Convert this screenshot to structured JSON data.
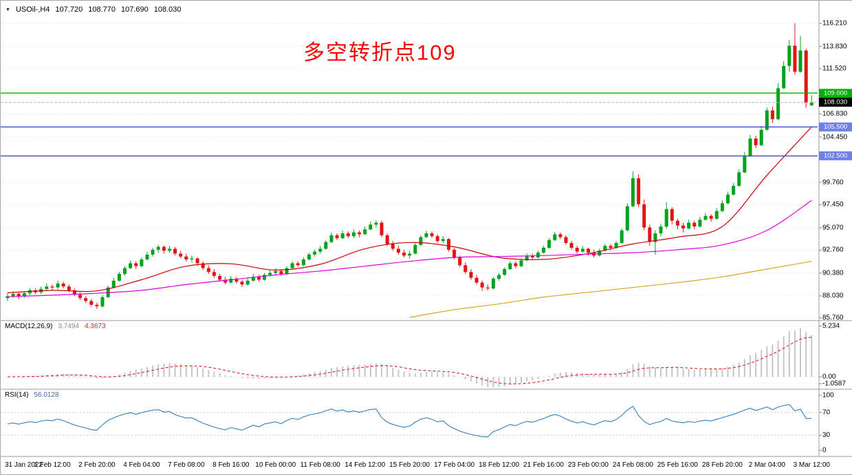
{
  "header": {
    "dropdown_icon": "▼",
    "title": "USOil-,H4",
    "open": "107.720",
    "high": "108.770",
    "low": "107.690",
    "close": "108.030"
  },
  "annotation": {
    "text": "多空转折点109"
  },
  "colors": {
    "up": "#00A31C",
    "down": "#E51414",
    "ma_fast": "#CC0000",
    "ma_mid": "#DD00DD",
    "ma_slow": "#DAA520",
    "hline_green": "#00B000",
    "hline_blue": "#3B4CC8",
    "hline_blue_label_bg": "#6E7FE6",
    "price_label_bg": "#000000",
    "macd_hist": "#C6C6C6",
    "macd_signal": "#D01010",
    "rsi": "#2E7FC1",
    "grid": "#D8D8D8",
    "border": "#9A9A9A",
    "annotation": "#FF0000"
  },
  "chart_data": {
    "type": "candlestick",
    "title": "USOil-,H4",
    "symbol": "USOil-",
    "timeframe": "H4",
    "candles_per_label": 8,
    "x_labels": [
      "31 Jan 2022",
      "1 Feb 12:00",
      "2 Feb 20:00",
      "4 Feb 04:00",
      "7 Feb 08:00",
      "8 Feb 16:00",
      "10 Feb 00:00",
      "11 Feb 08:00",
      "14 Feb 12:00",
      "15 Feb 20:00",
      "17 Feb 04:00",
      "18 Feb 12:00",
      "21 Feb 16:00",
      "23 Feb 00:00",
      "24 Feb 08:00",
      "25 Feb 16:00",
      "28 Feb 20:00",
      "2 Mar 04:00",
      "3 Mar 12:00"
    ],
    "y_ticks": [
      {
        "label": "116.210",
        "value": 116.21
      },
      {
        "label": "113.830",
        "value": 113.83
      },
      {
        "label": "111.520",
        "value": 111.52
      },
      {
        "label": "106.830",
        "value": 106.83
      },
      {
        "label": "104.450",
        "value": 104.45
      },
      {
        "label": "99.760",
        "value": 99.76
      },
      {
        "label": "97.450",
        "value": 97.45
      },
      {
        "label": "95.070",
        "value": 95.07
      },
      {
        "label": "92.760",
        "value": 92.76
      },
      {
        "label": "90.380",
        "value": 90.38
      },
      {
        "label": "88.030",
        "value": 88.03
      },
      {
        "label": "85.760",
        "value": 85.76
      }
    ],
    "hlines": [
      {
        "value": 109.0,
        "label": "109.000",
        "color_key": "green"
      },
      {
        "value": 105.5,
        "label": "105.500",
        "color_key": "blue"
      },
      {
        "value": 102.5,
        "label": "102.500",
        "color_key": "blue"
      }
    ],
    "bid": {
      "value": 108.03,
      "label": "108.030"
    },
    "candles": [
      [
        87.8,
        88.3,
        87.5,
        88.0
      ],
      [
        88.0,
        88.5,
        87.8,
        88.25
      ],
      [
        88.25,
        88.4,
        87.7,
        87.95
      ],
      [
        87.95,
        88.5,
        87.8,
        88.3
      ],
      [
        88.3,
        88.8,
        88.1,
        88.6
      ],
      [
        88.6,
        88.8,
        88.2,
        88.4
      ],
      [
        88.4,
        89.0,
        88.2,
        88.75
      ],
      [
        88.75,
        89.3,
        88.6,
        89.0
      ],
      [
        89.0,
        89.2,
        88.6,
        88.9
      ],
      [
        88.9,
        89.6,
        88.7,
        89.3
      ],
      [
        89.3,
        89.5,
        88.8,
        89.0
      ],
      [
        89.0,
        89.2,
        88.4,
        88.6
      ],
      [
        88.6,
        88.8,
        88.0,
        88.15
      ],
      [
        88.15,
        88.4,
        87.6,
        87.8
      ],
      [
        87.8,
        88.0,
        87.3,
        87.5
      ],
      [
        87.5,
        87.7,
        86.9,
        87.1
      ],
      [
        87.1,
        87.3,
        86.68,
        86.95
      ],
      [
        86.95,
        88.1,
        86.8,
        87.9
      ],
      [
        87.9,
        89.1,
        87.8,
        88.9
      ],
      [
        88.9,
        89.9,
        88.8,
        89.6
      ],
      [
        89.6,
        90.5,
        89.5,
        90.3
      ],
      [
        90.3,
        91.1,
        90.1,
        90.9
      ],
      [
        90.9,
        91.7,
        90.8,
        91.4
      ],
      [
        91.4,
        91.6,
        90.8,
        91.1
      ],
      [
        91.1,
        92.0,
        91.0,
        91.8
      ],
      [
        91.8,
        92.6,
        91.7,
        92.3
      ],
      [
        92.3,
        93.0,
        92.1,
        92.8
      ],
      [
        92.8,
        93.3,
        92.5,
        93.1
      ],
      [
        93.1,
        93.25,
        92.4,
        92.7
      ],
      [
        92.7,
        93.2,
        92.5,
        92.9
      ],
      [
        92.9,
        93.1,
        92.2,
        92.4
      ],
      [
        92.4,
        92.7,
        91.9,
        92.1
      ],
      [
        92.1,
        92.4,
        91.6,
        91.8
      ],
      [
        91.8,
        92.2,
        91.5,
        91.9
      ],
      [
        91.9,
        92.0,
        91.1,
        91.4
      ],
      [
        91.4,
        91.6,
        90.7,
        90.9
      ],
      [
        90.9,
        91.2,
        90.3,
        90.5
      ],
      [
        90.5,
        90.8,
        89.9,
        90.1
      ],
      [
        90.1,
        90.3,
        89.5,
        89.7
      ],
      [
        89.7,
        90.0,
        89.2,
        89.4
      ],
      [
        89.4,
        90.1,
        89.3,
        89.8
      ],
      [
        89.8,
        90.0,
        89.3,
        89.5
      ],
      [
        89.5,
        89.7,
        88.95,
        89.2
      ],
      [
        89.2,
        89.9,
        89.1,
        89.6
      ],
      [
        89.6,
        90.3,
        89.5,
        90.0
      ],
      [
        90.0,
        90.2,
        89.5,
        89.7
      ],
      [
        89.7,
        90.4,
        89.6,
        90.2
      ],
      [
        90.2,
        90.7,
        90.0,
        90.4
      ],
      [
        90.4,
        90.9,
        90.2,
        90.6
      ],
      [
        90.6,
        90.8,
        90.1,
        90.3
      ],
      [
        90.3,
        91.1,
        90.2,
        90.9
      ],
      [
        90.9,
        91.6,
        90.8,
        91.4
      ],
      [
        91.4,
        91.6,
        91.0,
        91.2
      ],
      [
        91.2,
        92.0,
        91.1,
        91.8
      ],
      [
        91.8,
        92.5,
        91.7,
        92.3
      ],
      [
        92.3,
        92.8,
        92.1,
        92.6
      ],
      [
        92.6,
        93.2,
        92.4,
        92.9
      ],
      [
        92.9,
        93.8,
        92.8,
        93.6
      ],
      [
        93.6,
        94.6,
        93.5,
        94.3
      ],
      [
        94.3,
        94.5,
        93.8,
        94.0
      ],
      [
        94.0,
        94.8,
        93.9,
        94.5
      ],
      [
        94.5,
        94.7,
        94.0,
        94.2
      ],
      [
        94.2,
        94.9,
        94.0,
        94.6
      ],
      [
        94.6,
        94.8,
        94.1,
        94.4
      ],
      [
        94.4,
        95.2,
        94.3,
        94.9
      ],
      [
        94.9,
        95.7,
        94.8,
        95.4
      ],
      [
        95.4,
        95.85,
        95.1,
        95.6
      ],
      [
        95.6,
        95.8,
        94.1,
        94.3
      ],
      [
        94.3,
        94.5,
        93.2,
        93.4
      ],
      [
        93.4,
        93.7,
        92.7,
        92.9
      ],
      [
        92.9,
        93.2,
        92.3,
        92.5
      ],
      [
        92.5,
        92.8,
        92.0,
        92.2
      ],
      [
        92.2,
        92.7,
        91.9,
        92.4
      ],
      [
        92.4,
        93.5,
        92.3,
        93.3
      ],
      [
        93.3,
        94.3,
        93.2,
        94.1
      ],
      [
        94.1,
        94.75,
        94.0,
        94.5
      ],
      [
        94.5,
        94.7,
        94.0,
        94.2
      ],
      [
        94.2,
        94.4,
        93.5,
        93.7
      ],
      [
        93.7,
        94.2,
        93.5,
        93.9
      ],
      [
        93.9,
        94.0,
        92.6,
        92.8
      ],
      [
        92.8,
        93.0,
        91.8,
        92.0
      ],
      [
        92.0,
        92.2,
        91.0,
        91.2
      ],
      [
        91.2,
        91.5,
        90.3,
        90.5
      ],
      [
        90.5,
        90.8,
        89.7,
        89.9
      ],
      [
        89.9,
        90.2,
        89.2,
        89.4
      ],
      [
        89.4,
        89.6,
        88.55,
        88.9
      ],
      [
        88.9,
        89.2,
        88.6,
        88.8
      ],
      [
        88.8,
        90.0,
        88.7,
        89.8
      ],
      [
        89.8,
        90.4,
        89.6,
        90.2
      ],
      [
        90.2,
        91.0,
        90.1,
        90.8
      ],
      [
        90.8,
        91.6,
        90.7,
        91.4
      ],
      [
        91.4,
        91.6,
        90.9,
        91.1
      ],
      [
        91.1,
        91.9,
        91.0,
        91.7
      ],
      [
        91.7,
        92.4,
        91.6,
        92.2
      ],
      [
        92.2,
        92.4,
        91.8,
        92.0
      ],
      [
        92.0,
        92.7,
        91.9,
        92.5
      ],
      [
        92.5,
        93.2,
        92.4,
        93.0
      ],
      [
        93.0,
        94.0,
        92.9,
        93.8
      ],
      [
        93.8,
        94.65,
        93.7,
        94.4
      ],
      [
        94.4,
        94.6,
        93.9,
        94.1
      ],
      [
        94.1,
        94.3,
        93.3,
        93.5
      ],
      [
        93.5,
        93.7,
        92.8,
        93.0
      ],
      [
        93.0,
        93.2,
        92.4,
        92.6
      ],
      [
        92.6,
        93.2,
        92.5,
        92.9
      ],
      [
        92.9,
        93.0,
        92.2,
        92.5
      ],
      [
        92.5,
        92.8,
        92.0,
        92.2
      ],
      [
        92.2,
        92.9,
        92.1,
        92.7
      ],
      [
        92.7,
        93.4,
        92.6,
        93.2
      ],
      [
        93.2,
        93.4,
        92.7,
        93.0
      ],
      [
        93.0,
        93.7,
        92.9,
        93.5
      ],
      [
        93.5,
        95.0,
        93.4,
        94.8
      ],
      [
        94.8,
        97.6,
        94.7,
        97.3
      ],
      [
        97.3,
        100.9,
        97.2,
        100.2
      ],
      [
        100.2,
        100.6,
        97.2,
        97.5
      ],
      [
        97.5,
        98.0,
        94.8,
        95.1
      ],
      [
        95.1,
        95.4,
        93.2,
        93.6
      ],
      [
        93.6,
        94.8,
        92.3,
        94.5
      ],
      [
        94.5,
        95.5,
        94.2,
        95.2
      ],
      [
        95.2,
        97.7,
        95.0,
        97.0
      ],
      [
        97.0,
        97.2,
        95.4,
        95.8
      ],
      [
        95.8,
        96.0,
        94.9,
        95.3
      ],
      [
        95.3,
        95.6,
        94.6,
        95.0
      ],
      [
        95.0,
        95.9,
        94.9,
        95.6
      ],
      [
        95.6,
        95.8,
        94.9,
        95.2
      ],
      [
        95.2,
        96.2,
        95.1,
        95.9
      ],
      [
        95.9,
        96.6,
        95.8,
        96.3
      ],
      [
        96.3,
        96.5,
        95.7,
        96.0
      ],
      [
        96.0,
        97.1,
        95.9,
        96.8
      ],
      [
        96.8,
        97.9,
        96.7,
        97.6
      ],
      [
        97.6,
        98.8,
        97.5,
        98.5
      ],
      [
        98.5,
        99.7,
        98.4,
        99.4
      ],
      [
        99.4,
        101.1,
        99.3,
        100.8
      ],
      [
        100.8,
        102.9,
        100.7,
        102.5
      ],
      [
        102.5,
        104.7,
        102.4,
        104.3
      ],
      [
        104.3,
        104.6,
        103.3,
        103.6
      ],
      [
        103.6,
        105.6,
        103.5,
        105.2
      ],
      [
        105.2,
        107.5,
        105.1,
        107.2
      ],
      [
        107.2,
        107.6,
        105.9,
        106.3
      ],
      [
        106.3,
        110.0,
        106.2,
        109.5
      ],
      [
        109.5,
        112.3,
        109.4,
        111.8
      ],
      [
        111.8,
        114.5,
        111.2,
        113.9
      ],
      [
        113.9,
        116.21,
        110.9,
        111.2
      ],
      [
        111.2,
        114.9,
        111.1,
        113.4
      ],
      [
        113.4,
        113.6,
        107.5,
        108.0
      ],
      [
        107.72,
        108.77,
        107.69,
        108.03
      ]
    ],
    "ma_lines": [
      {
        "name": "ma-fast-red-line",
        "color": "#CC0000",
        "start": 0,
        "step": 8,
        "values": [
          88.35,
          88.6,
          88.55,
          89.7,
          91.1,
          91.35,
          90.7,
          91.3,
          92.9,
          93.55,
          93.1,
          92.0,
          91.8,
          92.4,
          93.4,
          94.1,
          95.2,
          100.5,
          105.5
        ]
      },
      {
        "name": "ma-mid-magenta-line",
        "color": "#DD00DD",
        "start": 0,
        "step": 8,
        "values": [
          87.95,
          88.1,
          88.3,
          88.6,
          89.2,
          89.7,
          90.2,
          90.6,
          91.1,
          91.6,
          92.0,
          92.1,
          92.2,
          92.35,
          92.5,
          92.8,
          93.3,
          94.8,
          97.9
        ]
      },
      {
        "name": "ma-slow-orange-line",
        "color": "#DAA520",
        "start": 72,
        "step": 8,
        "values": [
          85.8,
          86.6,
          87.2,
          87.9,
          88.4,
          88.9,
          89.4,
          90.0,
          90.8,
          91.6
        ]
      }
    ],
    "macd": {
      "label": "MACD(12,26,9)",
      "value_main": "3.7494",
      "value_signal": "4.3673",
      "fast": 12,
      "slow": 26,
      "signal_period": 9,
      "y_ticks": [
        {
          "label": "5.234",
          "value": 5.234
        },
        {
          "label": "0.00",
          "value": 0
        },
        {
          "label": "-1.0587",
          "value": -1.0587
        }
      ]
    },
    "rsi": {
      "label": "RSI(14)",
      "value": "56.0128",
      "period": 14,
      "levels": [
        70,
        30
      ],
      "y_ticks": [
        {
          "label": "100",
          "value": 100
        },
        {
          "label": "70",
          "value": 70
        },
        {
          "label": "30",
          "value": 30
        },
        {
          "label": "0",
          "value": 0
        }
      ]
    }
  }
}
